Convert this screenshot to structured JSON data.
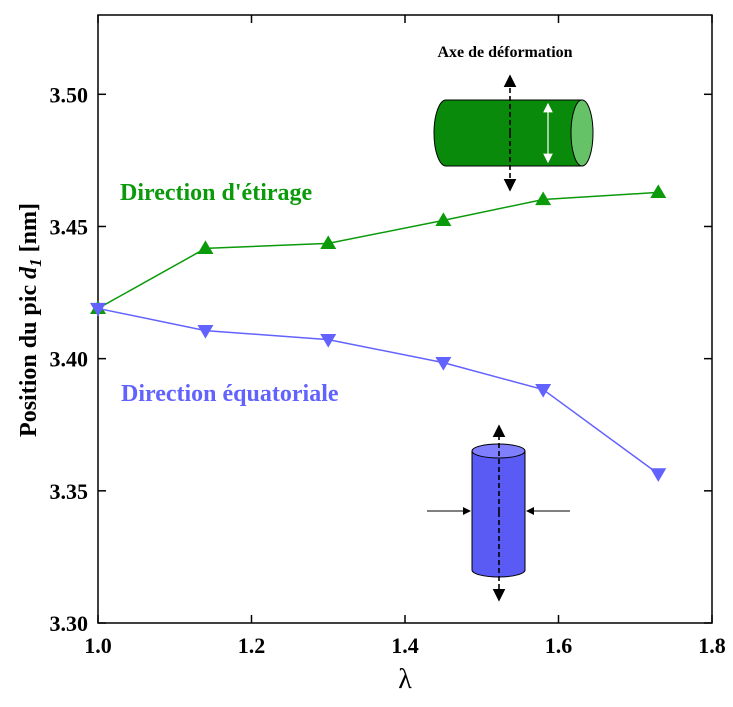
{
  "chart_data": {
    "type": "line",
    "x_label": "λ",
    "y_label": {
      "main": "Position du pic",
      "var": "d",
      "sub": "1",
      "unit": "[nm]"
    },
    "xlim": [
      1.0,
      1.8
    ],
    "ylim": [
      3.3,
      3.53
    ],
    "xticks": [
      {
        "value": 1.0,
        "label": "1.0"
      },
      {
        "value": 1.2,
        "label": "1.2"
      },
      {
        "value": 1.4,
        "label": "1.4"
      },
      {
        "value": 1.6,
        "label": "1.6"
      },
      {
        "value": 1.8,
        "label": "1.8"
      }
    ],
    "yticks": [
      {
        "value": 3.3,
        "label": "3.30"
      },
      {
        "value": 3.35,
        "label": "3.35"
      },
      {
        "value": 3.4,
        "label": "3.40"
      },
      {
        "value": 3.45,
        "label": "3.45"
      },
      {
        "value": 3.5,
        "label": "3.50"
      }
    ],
    "series": [
      {
        "name": "Direction d'étirage",
        "color": "#0a9a0a",
        "marker": "triangle-up",
        "x": [
          1.0,
          1.14,
          1.3,
          1.45,
          1.58,
          1.73
        ],
        "values": [
          3.419,
          3.4417,
          3.4436,
          3.4523,
          3.4602,
          3.4629
        ]
      },
      {
        "name": "Direction équatoriale",
        "color": "#6262ff",
        "marker": "triangle-down",
        "x": [
          1.0,
          1.14,
          1.3,
          1.45,
          1.58,
          1.73
        ],
        "values": [
          3.419,
          3.4106,
          3.4072,
          3.3985,
          3.3883,
          3.3564
        ]
      }
    ],
    "annotations": [
      "Axe de déformation"
    ]
  }
}
